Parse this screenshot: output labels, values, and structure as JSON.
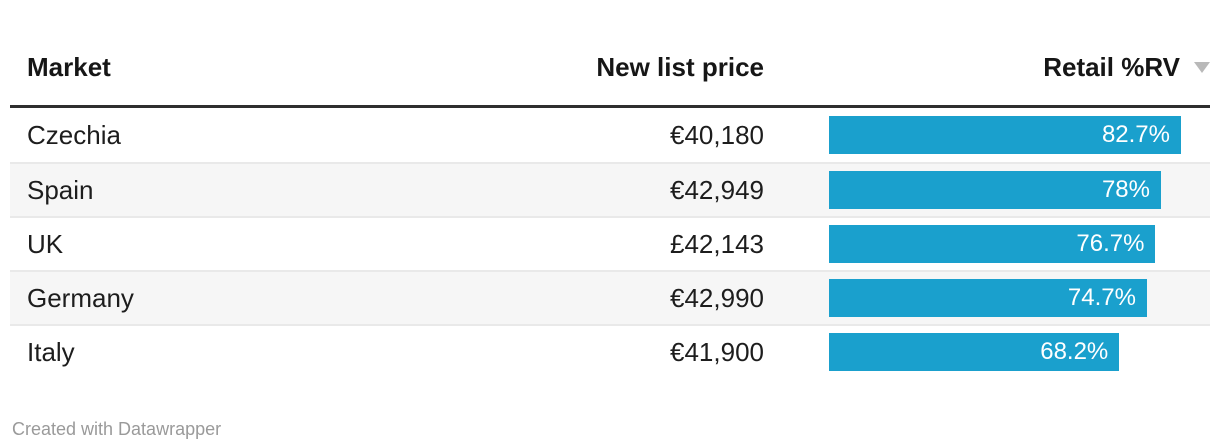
{
  "table": {
    "columns": [
      {
        "label": "Market"
      },
      {
        "label": "New list price"
      },
      {
        "label": "Retail %RV",
        "sort": "desc",
        "sort_icon": "triangle-down"
      }
    ],
    "rows": [
      {
        "market": "Czechia",
        "price": "€40,180",
        "rv": 82.7,
        "rv_label": "82.7%"
      },
      {
        "market": "Spain",
        "price": "€42,949",
        "rv": 78,
        "rv_label": "78%"
      },
      {
        "market": "UK",
        "price": "£42,143",
        "rv": 76.7,
        "rv_label": "76.7%"
      },
      {
        "market": "Germany",
        "price": "€42,990",
        "rv": 74.7,
        "rv_label": "74.7%"
      },
      {
        "market": "Italy",
        "price": "€41,900",
        "rv": 68.2,
        "rv_label": "68.2%"
      }
    ],
    "bar_max": 82.7,
    "colors": {
      "bar": "#1aa0cd",
      "header_rule": "#2e2e2e",
      "stripe": "#f6f6f6",
      "row_border": "#e9e9e9",
      "sort_arrow": "#b9b9b9",
      "bar_label": "#ffffff"
    }
  },
  "chart_data": {
    "type": "table",
    "title": "",
    "columns": [
      "Market",
      "New list price",
      "Retail %RV"
    ],
    "rows": [
      [
        "Czechia",
        "€40,180",
        "82.7%"
      ],
      [
        "Spain",
        "€42,949",
        "78%"
      ],
      [
        "UK",
        "£42,143",
        "76.7%"
      ],
      [
        "Germany",
        "€42,990",
        "74.7%"
      ],
      [
        "Italy",
        "€41,900",
        "68.2%"
      ]
    ],
    "bar_column": {
      "name": "Retail %RV",
      "values": [
        82.7,
        78,
        76.7,
        74.7,
        68.2
      ],
      "unit": "%",
      "scale_max": 82.7,
      "sorted": "descending"
    }
  },
  "footer": {
    "credit": "Created with Datawrapper"
  }
}
